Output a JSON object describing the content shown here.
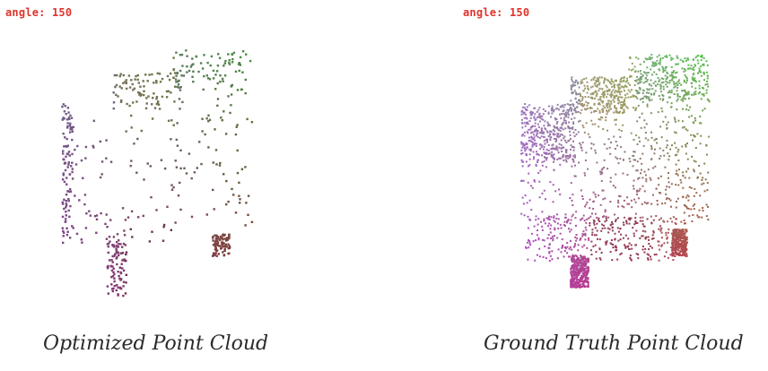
{
  "panels": [
    {
      "angle_label": "angle: 150",
      "caption": "Optimized Point Cloud"
    },
    {
      "angle_label": "angle: 150",
      "caption": "Ground Truth Point Cloud"
    }
  ],
  "colors": {
    "angle_text": "#e0332c",
    "caption_text": "#2a2a2a",
    "cloud_palette": [
      "#8f4fa0",
      "#c0344a",
      "#7a2630",
      "#4e5a8a",
      "#3fa058",
      "#57c84a",
      "#b8a440",
      "#606048",
      "#b040c0",
      "#9888c0"
    ]
  }
}
